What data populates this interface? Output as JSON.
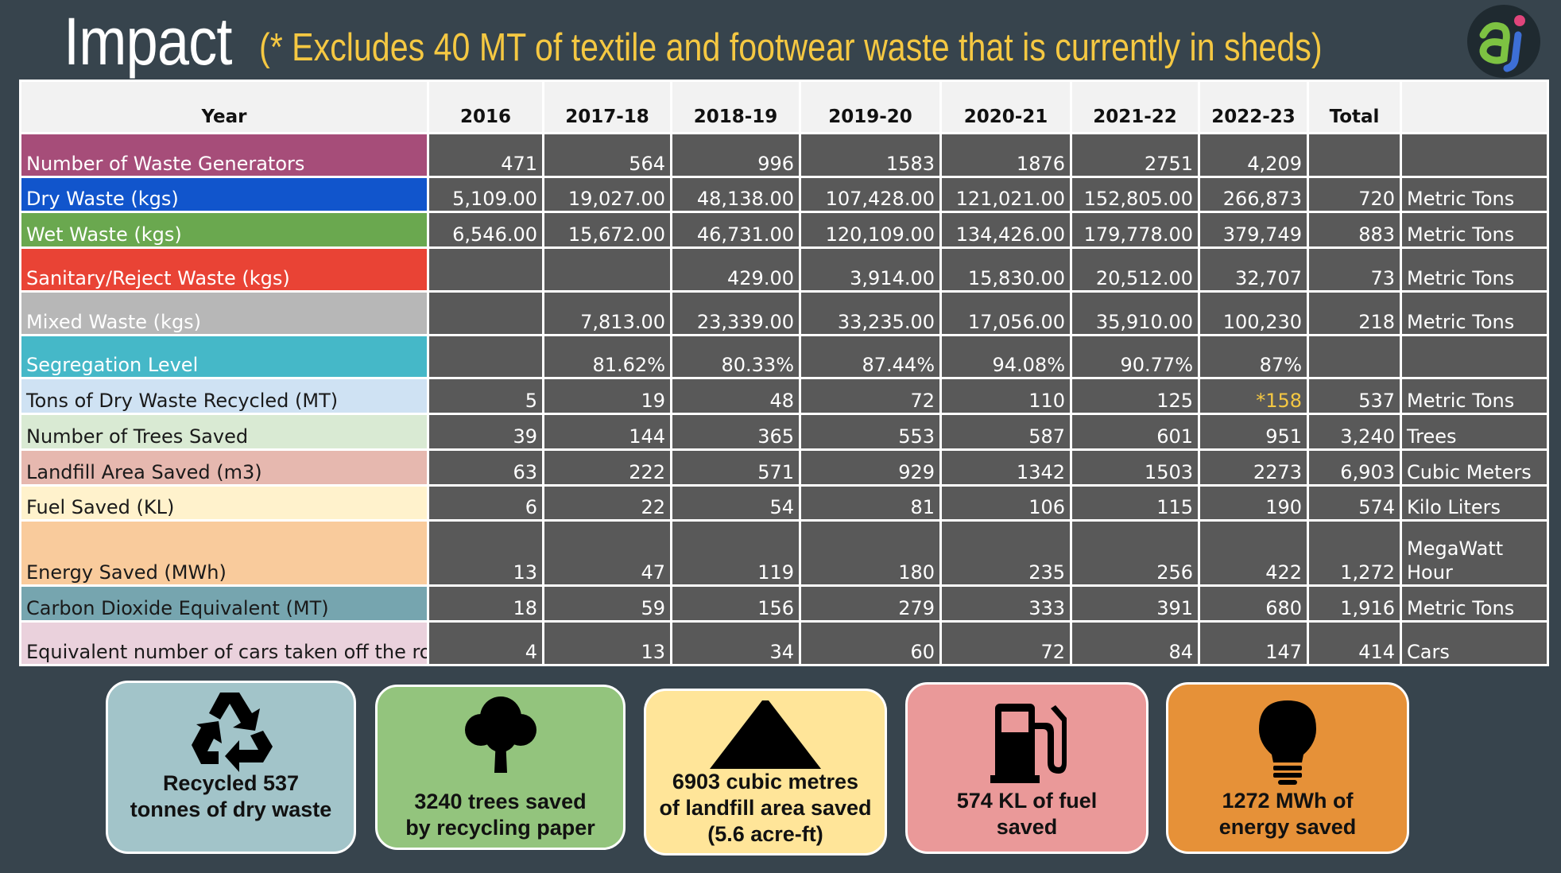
{
  "header": {
    "title": "Impact",
    "subtitle": "(* Excludes 40 MT of textile and footwear waste that is currently in sheds)"
  },
  "table": {
    "columns": [
      "Year",
      "2016",
      "2017-18",
      "2018-19",
      "2019-20",
      "2020-21",
      "2021-22",
      "2022-23",
      "Total",
      ""
    ],
    "rows": [
      {
        "label": "Number of Waste Generators",
        "color": "#a64d79",
        "text": "#ffffff",
        "cells": [
          "471",
          "564",
          "996",
          "1583",
          "1876",
          "2751",
          "4,209",
          "",
          ""
        ]
      },
      {
        "label": "Dry Waste (kgs)",
        "color": "#1155cc",
        "text": "#ffffff",
        "cells": [
          "5,109.00",
          "19,027.00",
          "48,138.00",
          "107,428.00",
          "121,021.00",
          "152,805.00",
          "266,873",
          "720",
          "Metric Tons"
        ]
      },
      {
        "label": "Wet Waste (kgs)",
        "color": "#6aa84f",
        "text": "#ffffff",
        "cells": [
          "6,546.00",
          "15,672.00",
          "46,731.00",
          "120,109.00",
          "134,426.00",
          "179,778.00",
          "379,749",
          "883",
          "Metric Tons"
        ]
      },
      {
        "label": "Sanitary/Reject Waste (kgs)",
        "color": "#e94335",
        "text": "#ffffff",
        "cells": [
          "",
          "",
          "429.00",
          "3,914.00",
          "15,830.00",
          "20,512.00",
          "32,707",
          "73",
          "Metric Tons"
        ]
      },
      {
        "label": "Mixed Waste (kgs)",
        "color": "#b7b7b7",
        "text": "#ffffff",
        "cells": [
          "",
          "7,813.00",
          "23,339.00",
          "33,235.00",
          "17,056.00",
          "35,910.00",
          "100,230",
          "218",
          "Metric Tons"
        ]
      },
      {
        "label": "Segregation Level",
        "color": "#45b8c8",
        "text": "#ffffff",
        "cells": [
          "",
          "81.62%",
          "80.33%",
          "87.44%",
          "94.08%",
          "90.77%",
          "87%",
          "",
          ""
        ]
      },
      {
        "label": "Tons of Dry Waste Recycled (MT)",
        "color": "#cfe2f3",
        "text": "#1a1a1a",
        "cells": [
          "5",
          "19",
          "48",
          "72",
          "110",
          "125",
          "*158",
          "537",
          "Metric Tons"
        ]
      },
      {
        "label": "Number of Trees Saved",
        "color": "#d9ead3",
        "text": "#1a1a1a",
        "cells": [
          "39",
          "144",
          "365",
          "553",
          "587",
          "601",
          "951",
          "3,240",
          "Trees"
        ]
      },
      {
        "label": "Landfill Area Saved (m3)",
        "color": "#e6b8af",
        "text": "#1a1a1a",
        "cells": [
          "63",
          "222",
          "571",
          "929",
          "1342",
          "1503",
          "2273",
          "6,903",
          "Cubic Meters"
        ]
      },
      {
        "label": "Fuel Saved (KL)",
        "color": "#fff2cc",
        "text": "#1a1a1a",
        "cells": [
          "6",
          "22",
          "54",
          "81",
          "106",
          "115",
          "190",
          "574",
          "Kilo Liters"
        ]
      },
      {
        "label": "Energy Saved (MWh)",
        "color": "#f9cb9c",
        "text": "#1a1a1a",
        "cells": [
          "13",
          "47",
          "119",
          "180",
          "235",
          "256",
          "422",
          "1,272",
          "MegaWatt Hour"
        ]
      },
      {
        "label": "Carbon Dioxide Equivalent (MT)",
        "color": "#76a5af",
        "text": "#1a1a1a",
        "cells": [
          "18",
          "59",
          "156",
          "279",
          "333",
          "391",
          "680",
          "1,916",
          "Metric Tons"
        ]
      },
      {
        "label": "Equivalent number of cars taken off the road",
        "color": "#ead1dc",
        "text": "#1a1a1a",
        "cells": [
          "4",
          "13",
          "34",
          "60",
          "72",
          "84",
          "147",
          "414",
          "Cars"
        ]
      }
    ],
    "highlight_color": "#f5c842"
  },
  "cards": [
    {
      "icon": "recycle-icon",
      "color": "#a2c4c9",
      "line1": "Recycled 537",
      "line2": "tonnes of dry waste",
      "line3": ""
    },
    {
      "icon": "tree-icon",
      "color": "#93c47d",
      "line1": "3240  trees saved",
      "line2": "by recycling paper",
      "line3": ""
    },
    {
      "icon": "mountain-icon",
      "color": "#ffe599",
      "line1": "6903 cubic metres",
      "line2": "of landfill area saved",
      "line3": "(5.6  acre-ft)"
    },
    {
      "icon": "fuel-pump-icon",
      "color": "#ea9999",
      "line1": "574  KL of fuel",
      "line2": "saved",
      "line3": ""
    },
    {
      "icon": "lightbulb-icon",
      "color": "#e69138",
      "line1": "1272 MWh of",
      "line2": "energy saved",
      "line3": ""
    }
  ]
}
